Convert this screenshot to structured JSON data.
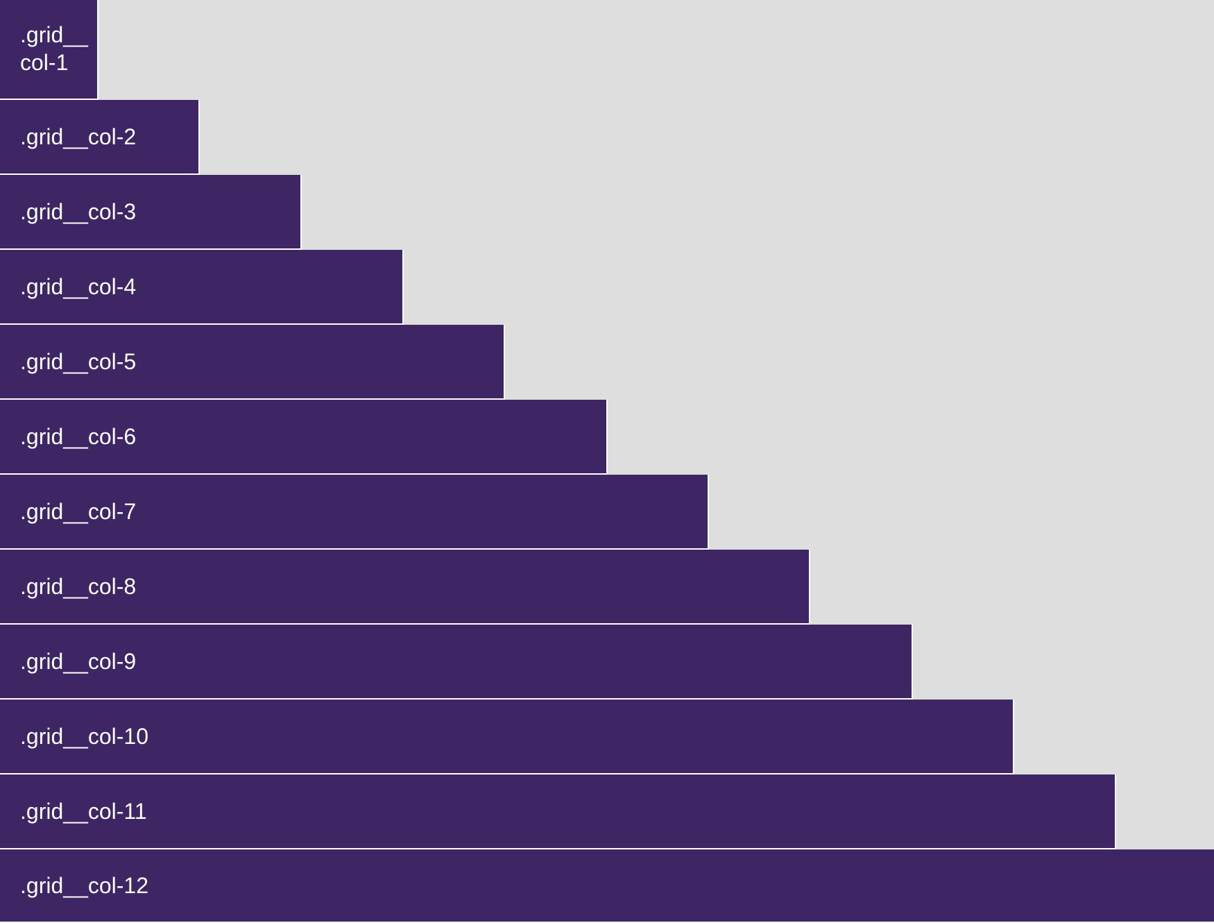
{
  "grid": {
    "columns": [
      {
        "label": ".grid__col-1",
        "span": 1
      },
      {
        "label": ".grid__col-2",
        "span": 2
      },
      {
        "label": ".grid__col-3",
        "span": 3
      },
      {
        "label": ".grid__col-4",
        "span": 4
      },
      {
        "label": ".grid__col-5",
        "span": 5
      },
      {
        "label": ".grid__col-6",
        "span": 6
      },
      {
        "label": ".grid__col-7",
        "span": 7
      },
      {
        "label": ".grid__col-8",
        "span": 8
      },
      {
        "label": ".grid__col-9",
        "span": 9
      },
      {
        "label": ".grid__col-10",
        "span": 10
      },
      {
        "label": ".grid__col-11",
        "span": 11
      },
      {
        "label": ".grid__col-12",
        "span": 12
      }
    ],
    "colors": {
      "block": "#3e2563",
      "background": "#dedede",
      "text": "#ffffff"
    }
  }
}
